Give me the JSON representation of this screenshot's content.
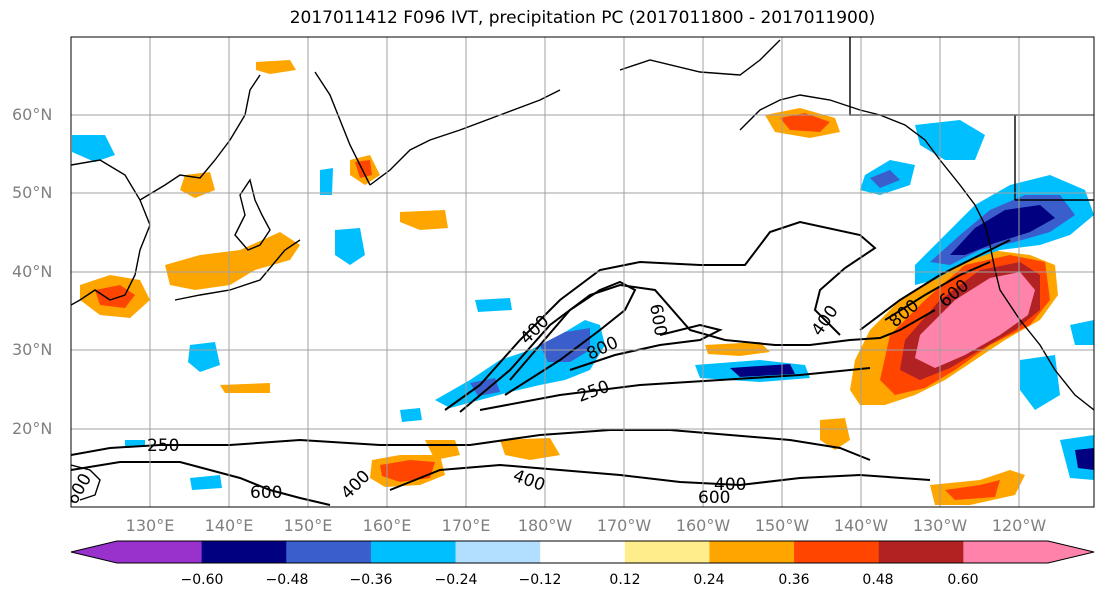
{
  "title": "2017011412 F096 IVT, precipitation PC (2017011800 - 2017011900)",
  "map": {
    "lat_labels": [
      "60°N",
      "50°N",
      "40°N",
      "30°N",
      "20°N"
    ],
    "lon_labels": [
      "130°E",
      "140°E",
      "150°E",
      "160°E",
      "170°E",
      "180°W",
      "170°W",
      "160°W",
      "150°W",
      "140°W",
      "130°W",
      "120°W"
    ],
    "contour_labels": [
      "250",
      "400",
      "600",
      "800",
      "250",
      "400",
      "600",
      "400",
      "600",
      "800",
      "400",
      "600",
      "400",
      "600"
    ],
    "gridline_color": "#a0a0a0"
  },
  "colorbar": {
    "colors": [
      "#9932cc",
      "#000080",
      "#3a5fcd",
      "#00bfff",
      "#b2dfff",
      "#ffffff",
      "#ffec8b",
      "#ffa500",
      "#ff4500",
      "#b22222",
      "#ff82ab"
    ],
    "tick_labels": [
      "−0.60",
      "−0.48",
      "−0.36",
      "−0.24",
      "−0.12",
      "0.12",
      "0.24",
      "0.36",
      "0.48",
      "0.60"
    ]
  }
}
